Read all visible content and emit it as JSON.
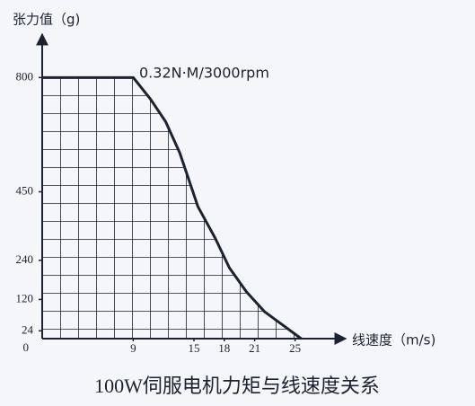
{
  "chart_data": {
    "type": "line",
    "y_label": "张力值（g)",
    "x_label": "线速度（m/s)",
    "annotation": "0.32N·M/3000rpm",
    "title": "100W伺服电机力矩与线速度关系",
    "x": [
      0,
      9,
      10.7,
      12.2,
      13.6,
      15.4,
      17.1,
      18.5,
      20.2,
      22,
      23.8,
      25.6
    ],
    "series": [
      {
        "color": "#1b2230",
        "values": [
          800,
          800,
          734,
          665,
          569,
          404,
          308,
          217,
          143,
          82,
          41,
          0
        ]
      }
    ],
    "xlim": [
      0,
      30
    ],
    "xticks": [
      9,
      15,
      18,
      21,
      25
    ],
    "ylim": [
      0,
      900
    ],
    "yticks": [
      0,
      24,
      120,
      240,
      450,
      800
    ]
  }
}
